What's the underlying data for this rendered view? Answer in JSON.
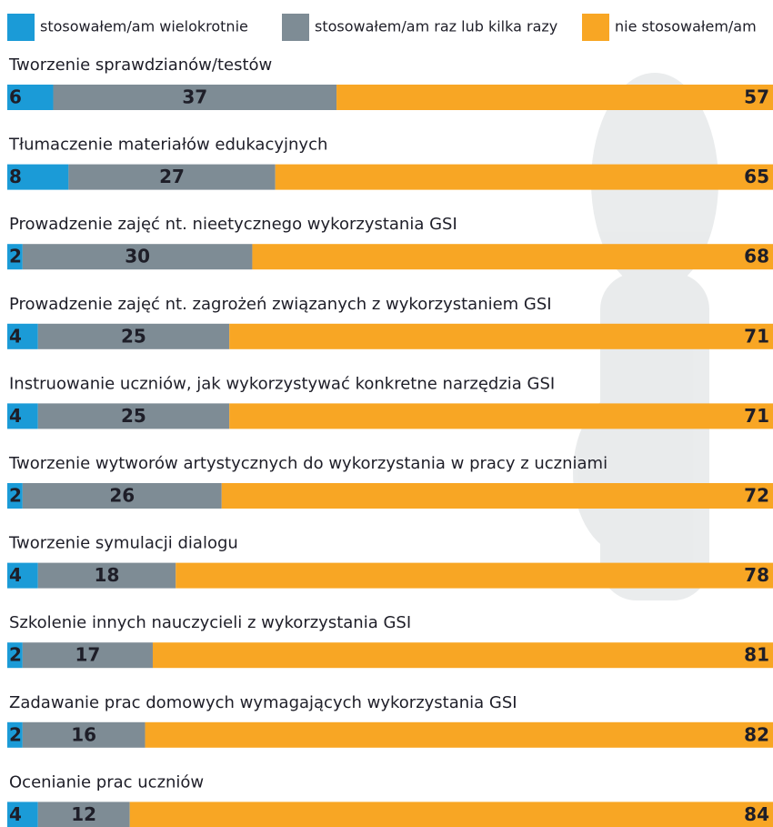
{
  "chart_data": {
    "type": "stacked-bar-horizontal",
    "categories": [
      "Tworzenie sprawdzianów/testów",
      "Tłumaczenie materiałów edukacyjnych",
      "Prowadzenie zajęć nt. nieetycznego wykorzystania GSI",
      "Prowadzenie zajęć nt. zagrożeń związanych z wykorzystaniem GSI",
      "Instruowanie uczniów, jak wykorzystywać konkretne narzędzia GSI",
      "Tworzenie wytworów artystycznych do wykorzystania w pracy z uczniami",
      "Tworzenie symulacji dialogu",
      "Szkolenie innych nauczycieli z wykorzystania GSI",
      "Zadawanie prac domowych wymagających wykorzystania GSI",
      "Ocenianie prac uczniów"
    ],
    "series": [
      {
        "name": "stosowałem/am wielokrotnie",
        "color": "#1b9bd7",
        "values": [
          6,
          8,
          2,
          4,
          4,
          2,
          4,
          2,
          2,
          4
        ]
      },
      {
        "name": "stosowałem/am raz lub kilka razy",
        "color": "#7e8c95",
        "values": [
          37,
          27,
          30,
          25,
          25,
          26,
          18,
          17,
          16,
          12
        ]
      },
      {
        "name": "nie stosowałem/am",
        "color": "#f8a624",
        "values": [
          57,
          65,
          68,
          71,
          71,
          72,
          78,
          81,
          82,
          84
        ]
      }
    ],
    "xlim": [
      0,
      100
    ]
  }
}
